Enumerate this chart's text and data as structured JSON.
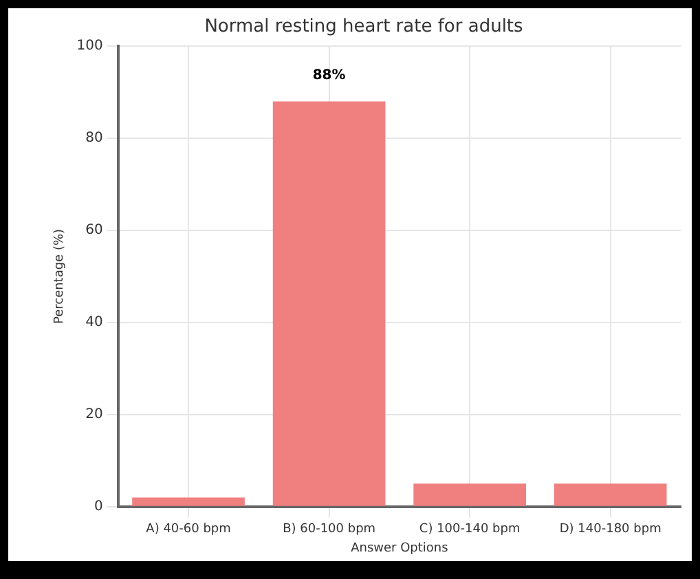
{
  "chart_data": {
    "type": "bar",
    "title": "Normal resting heart rate for adults",
    "xlabel": "Answer Options",
    "ylabel": "Percentage (%)",
    "categories": [
      "A) 40-60 bpm",
      "B) 60-100 bpm",
      "C) 100-140 bpm",
      "D) 140-180 bpm"
    ],
    "values": [
      2,
      88,
      5,
      5
    ],
    "color": "#f08080",
    "value_labels": [
      null,
      "88%",
      null,
      null
    ],
    "ylim": [
      0,
      100
    ],
    "yticks": [
      0,
      20,
      40,
      60,
      80,
      100
    ],
    "grid": true
  }
}
